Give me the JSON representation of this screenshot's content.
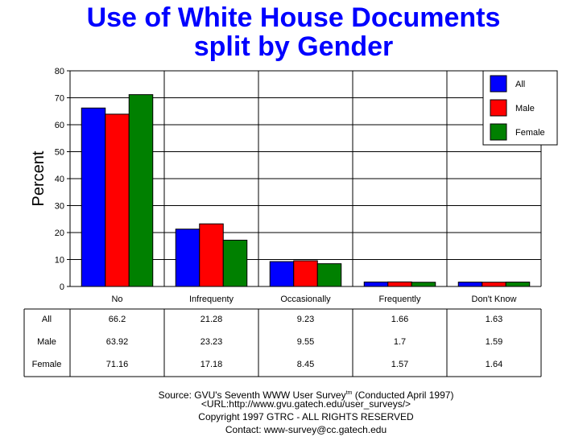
{
  "chart_data": {
    "type": "bar",
    "title_line1": "Use of White House Documents",
    "title_line2": "split by Gender",
    "ylabel": "Percent",
    "ylim": [
      0,
      80
    ],
    "yticks": [
      "0",
      "10",
      "20",
      "30",
      "40",
      "50",
      "60",
      "70",
      "80"
    ],
    "grid": true,
    "legend_position": "top-right",
    "categories": [
      "No",
      "Infrequenty",
      "Occasionally",
      "Frequently",
      "Don't Know"
    ],
    "series": [
      {
        "name": "All",
        "color": "#0000ff",
        "values": [
          66.2,
          21.28,
          9.23,
          1.66,
          1.63
        ],
        "labels": [
          "66.2",
          "21.28",
          "9.23",
          "1.66",
          "1.63"
        ]
      },
      {
        "name": "Male",
        "color": "#ff0000",
        "values": [
          63.92,
          23.23,
          9.55,
          1.7,
          1.59
        ],
        "labels": [
          "63.92",
          "23.23",
          "9.55",
          "1.7",
          "1.59"
        ]
      },
      {
        "name": "Female",
        "color": "#008000",
        "values": [
          71.16,
          17.18,
          8.45,
          1.57,
          1.64
        ],
        "labels": [
          "71.16",
          "17.18",
          "8.45",
          "1.57",
          "1.64"
        ]
      }
    ]
  },
  "footer": {
    "source_prefix": "Source: GVU's Seventh WWW User Survey",
    "source_tm": "tm",
    "source_suffix": " (Conducted April 1997)",
    "url": "<URL:http://www.gvu.gatech.edu/user_surveys/>",
    "copyright": "Copyright 1997 GTRC - ALL RIGHTS RESERVED",
    "contact": "Contact: www-survey@cc.gatech.edu"
  }
}
